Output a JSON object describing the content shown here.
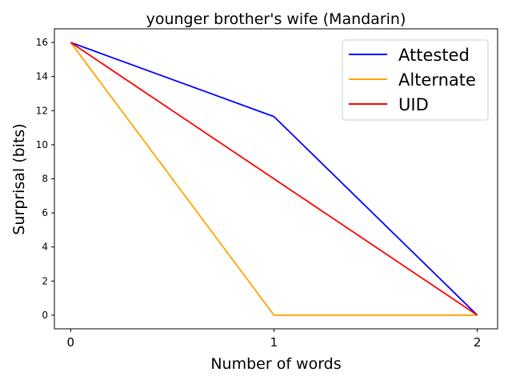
{
  "chart_data": {
    "type": "line",
    "title": "younger brother's wife (Mandarin)",
    "xlabel": "Number of words",
    "ylabel": "Surprisal (bits)",
    "x": [
      0,
      1,
      2
    ],
    "xticks": [
      "0",
      "1",
      "2"
    ],
    "xlim": [
      -0.08,
      2.1
    ],
    "yticks": [
      "0",
      "2",
      "4",
      "6",
      "8",
      "10",
      "12",
      "14",
      "16"
    ],
    "ylim": [
      -0.8,
      16.8
    ],
    "grid": false,
    "legend_position": "top-right",
    "series": [
      {
        "name": "Attested",
        "color": "#0000ff",
        "values": [
          16.0,
          11.65,
          0.0
        ]
      },
      {
        "name": "Alternate",
        "color": "#ffa500",
        "values": [
          16.0,
          0.0,
          0.0
        ]
      },
      {
        "name": "UID",
        "color": "#ff0000",
        "values": [
          16.0,
          8.0,
          0.0
        ]
      }
    ]
  }
}
